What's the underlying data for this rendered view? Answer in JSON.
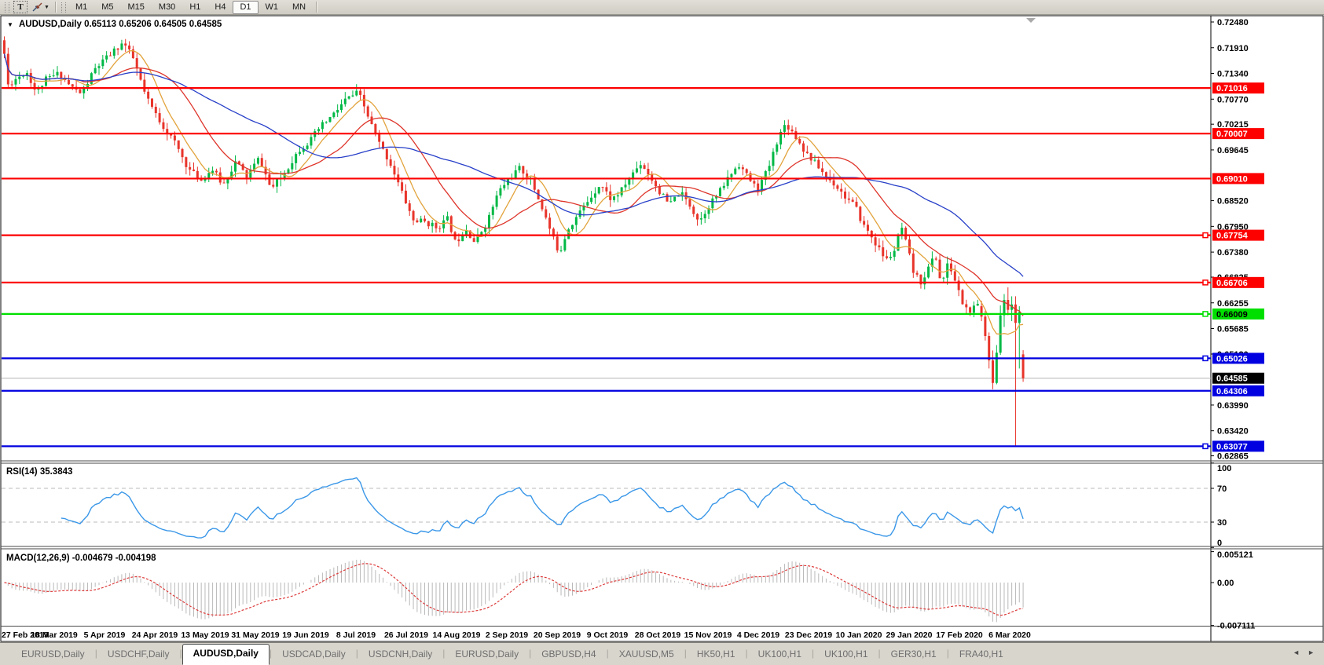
{
  "toolbar": {
    "text_tool": "T",
    "timeframes": [
      "M1",
      "M5",
      "M15",
      "M30",
      "H1",
      "H4",
      "D1",
      "W1",
      "MN"
    ],
    "active_timeframe": "D1"
  },
  "chart_data": {
    "type": "candlestick",
    "symbol": "AUDUSD",
    "timeframe": "Daily",
    "title_display": "AUDUSD,Daily  0.65113 0.65206 0.64505 0.64585",
    "last_candle": {
      "open": 0.65113,
      "high": 0.65206,
      "low": 0.64505,
      "close": 0.64585
    },
    "current_price": 0.64585,
    "price_axis_ticks": [
      "0.72480",
      "0.71910",
      "0.71340",
      "0.70770",
      "0.70215",
      "0.69645",
      "0.68520",
      "0.67950",
      "0.67380",
      "0.66825",
      "0.66255",
      "0.65685",
      "0.65120",
      "0.63990",
      "0.63420",
      "0.62865"
    ],
    "horizontal_levels": [
      {
        "price": 0.71016,
        "color": "red",
        "marker": false
      },
      {
        "price": 0.70007,
        "color": "red",
        "marker": false
      },
      {
        "price": 0.6901,
        "color": "red",
        "marker": false
      },
      {
        "price": 0.67754,
        "color": "red",
        "marker": true
      },
      {
        "price": 0.66706,
        "color": "red",
        "marker": true
      },
      {
        "price": 0.66009,
        "color": "green",
        "marker": true
      },
      {
        "price": 0.65026,
        "color": "blue",
        "marker": true
      },
      {
        "price": 0.64306,
        "color": "blue",
        "marker": false
      },
      {
        "price": 0.63077,
        "color": "blue",
        "marker": true
      }
    ],
    "date_labels": [
      "27 Feb 2019",
      "18 Mar 2019",
      "5 Apr 2019",
      "24 Apr 2019",
      "13 May 2019",
      "31 May 2019",
      "19 Jun 2019",
      "8 Jul 2019",
      "26 Jul 2019",
      "14 Aug 2019",
      "2 Sep 2019",
      "20 Sep 2019",
      "9 Oct 2019",
      "28 Oct 2019",
      "15 Nov 2019",
      "4 Dec 2019",
      "23 Dec 2019",
      "10 Jan 2020",
      "29 Jan 2020",
      "17 Feb 2020",
      "6 Mar 2020"
    ],
    "candle_count": 270,
    "price_path": [
      [
        5,
        0.7185
      ],
      [
        10,
        0.7108
      ],
      [
        22,
        0.7125
      ],
      [
        34,
        0.7138
      ],
      [
        46,
        0.7092
      ],
      [
        58,
        0.712
      ],
      [
        75,
        0.7134
      ],
      [
        90,
        0.7105
      ],
      [
        104,
        0.7088
      ],
      [
        120,
        0.7142
      ],
      [
        138,
        0.7172
      ],
      [
        157,
        0.7203
      ],
      [
        170,
        0.7165
      ],
      [
        186,
        0.708
      ],
      [
        205,
        0.7024
      ],
      [
        222,
        0.6982
      ],
      [
        240,
        0.6922
      ],
      [
        256,
        0.6897
      ],
      [
        270,
        0.6922
      ],
      [
        284,
        0.6886
      ],
      [
        300,
        0.6939
      ],
      [
        314,
        0.6905
      ],
      [
        330,
        0.6947
      ],
      [
        345,
        0.6877
      ],
      [
        362,
        0.6913
      ],
      [
        380,
        0.6964
      ],
      [
        394,
        0.6983
      ],
      [
        408,
        0.7016
      ],
      [
        424,
        0.7042
      ],
      [
        440,
        0.7076
      ],
      [
        456,
        0.7092
      ],
      [
        468,
        0.704
      ],
      [
        482,
        0.6981
      ],
      [
        498,
        0.693
      ],
      [
        512,
        0.6868
      ],
      [
        526,
        0.6808
      ],
      [
        540,
        0.6806
      ],
      [
        556,
        0.6792
      ],
      [
        570,
        0.6812
      ],
      [
        580,
        0.6756
      ],
      [
        592,
        0.6794
      ],
      [
        604,
        0.676
      ],
      [
        620,
        0.6805
      ],
      [
        634,
        0.687
      ],
      [
        648,
        0.6902
      ],
      [
        662,
        0.6924
      ],
      [
        676,
        0.6896
      ],
      [
        690,
        0.6836
      ],
      [
        704,
        0.6768
      ],
      [
        712,
        0.6736
      ],
      [
        722,
        0.6788
      ],
      [
        736,
        0.6822
      ],
      [
        750,
        0.6856
      ],
      [
        764,
        0.689
      ],
      [
        778,
        0.6854
      ],
      [
        790,
        0.6872
      ],
      [
        802,
        0.6906
      ],
      [
        816,
        0.6936
      ],
      [
        828,
        0.6904
      ],
      [
        840,
        0.687
      ],
      [
        852,
        0.6842
      ],
      [
        865,
        0.6872
      ],
      [
        878,
        0.6842
      ],
      [
        890,
        0.6806
      ],
      [
        902,
        0.6842
      ],
      [
        916,
        0.6872
      ],
      [
        928,
        0.6906
      ],
      [
        940,
        0.6934
      ],
      [
        952,
        0.6904
      ],
      [
        964,
        0.6876
      ],
      [
        978,
        0.6924
      ],
      [
        990,
        0.699
      ],
      [
        1000,
        0.7024
      ],
      [
        1012,
        0.6996
      ],
      [
        1024,
        0.6962
      ],
      [
        1040,
        0.693
      ],
      [
        1052,
        0.6904
      ],
      [
        1064,
        0.6886
      ],
      [
        1076,
        0.686
      ],
      [
        1088,
        0.684
      ],
      [
        1098,
        0.68
      ],
      [
        1108,
        0.6776
      ],
      [
        1118,
        0.6746
      ],
      [
        1128,
        0.672
      ],
      [
        1138,
        0.674
      ],
      [
        1147,
        0.6795
      ],
      [
        1155,
        0.6745
      ],
      [
        1163,
        0.669
      ],
      [
        1172,
        0.6672
      ],
      [
        1181,
        0.67
      ],
      [
        1190,
        0.6735
      ],
      [
        1198,
        0.6665
      ],
      [
        1207,
        0.6715
      ],
      [
        1216,
        0.6672
      ],
      [
        1226,
        0.662
      ],
      [
        1234,
        0.6605
      ],
      [
        1242,
        0.6618
      ]
    ],
    "final_candles": [
      [
        0.6618,
        0.663,
        0.6585,
        0.6595
      ],
      [
        0.6595,
        0.6608,
        0.6542,
        0.6552
      ],
      [
        0.6552,
        0.656,
        0.648,
        0.6498
      ],
      [
        0.6498,
        0.652,
        0.6434,
        0.6448
      ],
      [
        0.6448,
        0.6532,
        0.6445,
        0.6515
      ],
      [
        0.6515,
        0.662,
        0.651,
        0.6598
      ],
      [
        0.6598,
        0.6645,
        0.6572,
        0.6632
      ],
      [
        0.6632,
        0.666,
        0.6598,
        0.661
      ],
      [
        0.661,
        0.664,
        0.6585,
        0.6622
      ],
      [
        0.6622,
        0.664,
        0.63077,
        0.6581
      ],
      [
        0.6581,
        0.6618,
        0.648,
        0.6605
      ],
      [
        0.65113,
        0.65206,
        0.64505,
        0.64585
      ]
    ],
    "moving_averages": [
      {
        "name": "fast",
        "period": 8,
        "color": "#e2a33c"
      },
      {
        "name": "medium",
        "period": 21,
        "color": "#de352b"
      },
      {
        "name": "slow",
        "period": 48,
        "color": "#2840c8"
      }
    ],
    "rsi": {
      "header": "RSI(14) 35.3843",
      "period": 14,
      "last_value": 35.3843,
      "axis_ticks": [
        100,
        70,
        30,
        0
      ],
      "dashed_levels": [
        70,
        30
      ]
    },
    "macd": {
      "header": "MACD(12,26,9) -0.004679 -0.004198",
      "fast": 12,
      "slow": 26,
      "signal": 9,
      "last_main": -0.004679,
      "last_signal": -0.004198,
      "axis_ticks": [
        "0.005121",
        "0.00",
        "-0.007111"
      ],
      "axis_max": 0.005121,
      "axis_min": -0.007111
    }
  },
  "colors": {
    "candle_up": "#00b845",
    "candle_down": "#e8342a",
    "line_red": "#fd0000",
    "line_green": "#00df00",
    "line_blue": "#0000e0",
    "current_price_line": "#b4b4b4",
    "current_price_label_bg": "#000000",
    "rsi_line": "#3a97e8",
    "macd_histogram": "#b9b9b9",
    "macd_signal": "#dd3b3b",
    "level_dashed": "#bbbbbb"
  },
  "tabs": {
    "items": [
      "EURUSD,Daily",
      "USDCHF,Daily",
      "AUDUSD,Daily",
      "USDCAD,Daily",
      "USDCNH,Daily",
      "EURUSD,Daily",
      "GBPUSD,H4",
      "XAUUSD,M5",
      "HK50,H1",
      "UK100,H1",
      "UK100,H1",
      "GER30,H1",
      "FRA40,H1"
    ],
    "active_index": 2,
    "scroll_left": "◄",
    "scroll_right": "►"
  }
}
